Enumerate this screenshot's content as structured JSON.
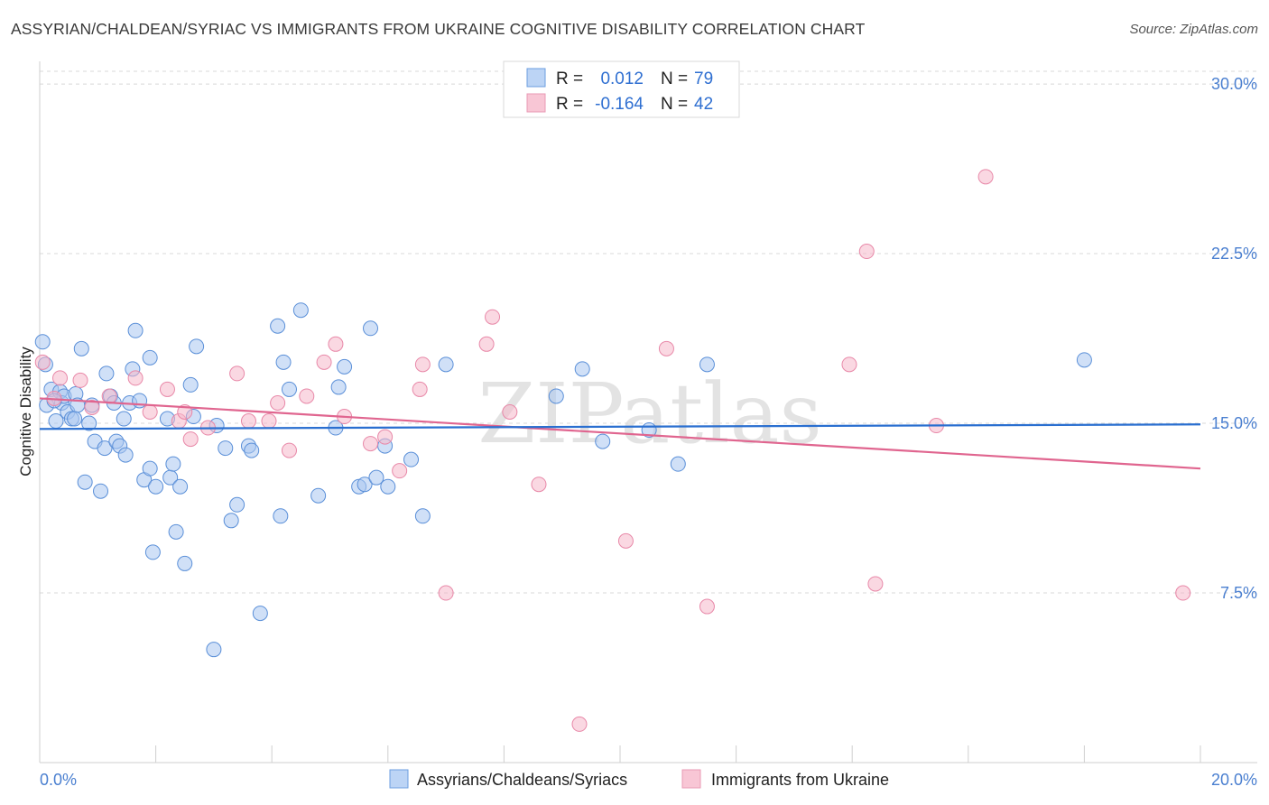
{
  "title": "ASSYRIAN/CHALDEAN/SYRIAC VS IMMIGRANTS FROM UKRAINE COGNITIVE DISABILITY CORRELATION CHART",
  "source": "Source: ZipAtlas.com",
  "watermark": "ZIPatlas",
  "colors": {
    "blue_fill": "#a9c7f1",
    "blue_stroke": "#5a8fd8",
    "blue_line": "#2a6fd0",
    "pink_fill": "#f5b8cb",
    "pink_stroke": "#e888a8",
    "pink_line": "#e0658f",
    "tick_text": "#4a7fd0",
    "grid": "#d8d8d8"
  },
  "legend_top": {
    "rows": [
      {
        "r_label": "R =",
        "r_value": "0.012",
        "n_label": "N =",
        "n_value": "79"
      },
      {
        "r_label": "R =",
        "r_value": "-0.164",
        "n_label": "N =",
        "n_value": "42"
      }
    ]
  },
  "chart_data": {
    "type": "scatter",
    "title": "ASSYRIAN/CHALDEAN/SYRIAC VS IMMIGRANTS FROM UKRAINE COGNITIVE DISABILITY CORRELATION CHART",
    "xlabel": "",
    "ylabel": "Cognitive Disability",
    "xlim": [
      0,
      20
    ],
    "ylim": [
      0,
      31
    ],
    "x_tick_labels": [
      "0.0%",
      "20.0%"
    ],
    "y_ticks": [
      7.5,
      15.0,
      22.5,
      30.0
    ],
    "y_tick_labels": [
      "7.5%",
      "15.0%",
      "22.5%",
      "30.0%"
    ],
    "grid": true,
    "legend_position": "top-center",
    "series": [
      {
        "name": "Assyrians/Chaldeans/Syriacs",
        "color": "#a9c7f1",
        "trend": {
          "x": [
            0,
            20
          ],
          "y": [
            14.75,
            14.95
          ]
        },
        "points": [
          {
            "x": 0.05,
            "y": 18.6
          },
          {
            "x": 0.1,
            "y": 17.6
          },
          {
            "x": 0.12,
            "y": 15.8
          },
          {
            "x": 0.2,
            "y": 16.5
          },
          {
            "x": 0.28,
            "y": 15.1
          },
          {
            "x": 0.35,
            "y": 16.4
          },
          {
            "x": 0.38,
            "y": 15.9
          },
          {
            "x": 0.42,
            "y": 16.2
          },
          {
            "x": 0.48,
            "y": 15.5
          },
          {
            "x": 0.55,
            "y": 15.2
          },
          {
            "x": 0.62,
            "y": 16.3
          },
          {
            "x": 0.65,
            "y": 15.8
          },
          {
            "x": 0.72,
            "y": 18.3
          },
          {
            "x": 0.78,
            "y": 12.4
          },
          {
            "x": 0.85,
            "y": 15.0
          },
          {
            "x": 0.9,
            "y": 15.8
          },
          {
            "x": 0.95,
            "y": 14.2
          },
          {
            "x": 1.05,
            "y": 12.0
          },
          {
            "x": 1.12,
            "y": 13.9
          },
          {
            "x": 1.15,
            "y": 17.2
          },
          {
            "x": 1.22,
            "y": 16.2
          },
          {
            "x": 1.28,
            "y": 15.9
          },
          {
            "x": 1.32,
            "y": 14.2
          },
          {
            "x": 1.38,
            "y": 14.0
          },
          {
            "x": 1.45,
            "y": 15.2
          },
          {
            "x": 1.48,
            "y": 13.6
          },
          {
            "x": 1.55,
            "y": 15.9
          },
          {
            "x": 1.6,
            "y": 17.4
          },
          {
            "x": 1.65,
            "y": 19.1
          },
          {
            "x": 1.72,
            "y": 16.0
          },
          {
            "x": 1.8,
            "y": 12.5
          },
          {
            "x": 1.9,
            "y": 13.0
          },
          {
            "x": 2.0,
            "y": 12.2
          },
          {
            "x": 1.95,
            "y": 9.3
          },
          {
            "x": 2.2,
            "y": 15.2
          },
          {
            "x": 2.25,
            "y": 12.6
          },
          {
            "x": 2.3,
            "y": 13.2
          },
          {
            "x": 2.35,
            "y": 10.2
          },
          {
            "x": 2.42,
            "y": 12.2
          },
          {
            "x": 2.5,
            "y": 8.8
          },
          {
            "x": 2.6,
            "y": 16.7
          },
          {
            "x": 2.65,
            "y": 15.3
          },
          {
            "x": 2.7,
            "y": 18.4
          },
          {
            "x": 1.9,
            "y": 17.9
          },
          {
            "x": 3.0,
            "y": 5.0
          },
          {
            "x": 3.05,
            "y": 14.9
          },
          {
            "x": 3.2,
            "y": 13.9
          },
          {
            "x": 3.3,
            "y": 10.7
          },
          {
            "x": 3.4,
            "y": 11.4
          },
          {
            "x": 3.6,
            "y": 14.0
          },
          {
            "x": 3.65,
            "y": 13.8
          },
          {
            "x": 3.8,
            "y": 6.6
          },
          {
            "x": 4.1,
            "y": 19.3
          },
          {
            "x": 4.15,
            "y": 10.9
          },
          {
            "x": 4.2,
            "y": 17.7
          },
          {
            "x": 4.3,
            "y": 16.5
          },
          {
            "x": 4.5,
            "y": 20.0
          },
          {
            "x": 4.8,
            "y": 11.8
          },
          {
            "x": 5.1,
            "y": 14.8
          },
          {
            "x": 5.15,
            "y": 16.6
          },
          {
            "x": 5.25,
            "y": 17.5
          },
          {
            "x": 5.5,
            "y": 12.2
          },
          {
            "x": 5.6,
            "y": 12.3
          },
          {
            "x": 5.7,
            "y": 19.2
          },
          {
            "x": 5.8,
            "y": 12.6
          },
          {
            "x": 5.95,
            "y": 14.0
          },
          {
            "x": 6.0,
            "y": 12.2
          },
          {
            "x": 6.4,
            "y": 13.4
          },
          {
            "x": 6.6,
            "y": 10.9
          },
          {
            "x": 7.0,
            "y": 17.6
          },
          {
            "x": 8.9,
            "y": 16.2
          },
          {
            "x": 9.35,
            "y": 17.4
          },
          {
            "x": 9.7,
            "y": 14.2
          },
          {
            "x": 10.5,
            "y": 14.7
          },
          {
            "x": 11.0,
            "y": 13.2
          },
          {
            "x": 11.5,
            "y": 17.6
          },
          {
            "x": 18.0,
            "y": 17.8
          },
          {
            "x": 0.6,
            "y": 15.2
          },
          {
            "x": 0.25,
            "y": 16.0
          }
        ]
      },
      {
        "name": "Immigrants from Ukraine",
        "color": "#f5b8cb",
        "trend": {
          "x": [
            0,
            20
          ],
          "y": [
            16.1,
            13.0
          ]
        },
        "points": [
          {
            "x": 0.05,
            "y": 17.7
          },
          {
            "x": 0.35,
            "y": 17.0
          },
          {
            "x": 0.7,
            "y": 16.9
          },
          {
            "x": 0.9,
            "y": 15.7
          },
          {
            "x": 1.2,
            "y": 16.2
          },
          {
            "x": 1.65,
            "y": 17.0
          },
          {
            "x": 1.9,
            "y": 15.5
          },
          {
            "x": 2.2,
            "y": 16.5
          },
          {
            "x": 2.4,
            "y": 15.1
          },
          {
            "x": 2.6,
            "y": 14.3
          },
          {
            "x": 2.9,
            "y": 14.8
          },
          {
            "x": 3.4,
            "y": 17.2
          },
          {
            "x": 3.6,
            "y": 15.1
          },
          {
            "x": 3.95,
            "y": 15.1
          },
          {
            "x": 4.1,
            "y": 15.9
          },
          {
            "x": 4.3,
            "y": 13.8
          },
          {
            "x": 4.6,
            "y": 16.2
          },
          {
            "x": 4.9,
            "y": 17.7
          },
          {
            "x": 5.1,
            "y": 18.5
          },
          {
            "x": 5.25,
            "y": 15.3
          },
          {
            "x": 5.7,
            "y": 14.1
          },
          {
            "x": 5.95,
            "y": 14.4
          },
          {
            "x": 6.2,
            "y": 12.9
          },
          {
            "x": 6.55,
            "y": 16.5
          },
          {
            "x": 6.6,
            "y": 17.6
          },
          {
            "x": 7.0,
            "y": 7.5
          },
          {
            "x": 7.7,
            "y": 18.5
          },
          {
            "x": 7.8,
            "y": 19.7
          },
          {
            "x": 8.1,
            "y": 15.5
          },
          {
            "x": 8.6,
            "y": 12.3
          },
          {
            "x": 9.3,
            "y": 1.7
          },
          {
            "x": 10.1,
            "y": 9.8
          },
          {
            "x": 10.8,
            "y": 18.3
          },
          {
            "x": 11.5,
            "y": 6.9
          },
          {
            "x": 13.95,
            "y": 17.6
          },
          {
            "x": 14.25,
            "y": 22.6
          },
          {
            "x": 14.4,
            "y": 7.9
          },
          {
            "x": 15.45,
            "y": 14.9
          },
          {
            "x": 16.3,
            "y": 25.9
          },
          {
            "x": 19.7,
            "y": 7.5
          },
          {
            "x": 2.5,
            "y": 15.5
          },
          {
            "x": 0.25,
            "y": 16.1
          }
        ]
      }
    ]
  },
  "bottom_legend": {
    "items": [
      "Assyrians/Chaldeans/Syriacs",
      "Immigrants from Ukraine"
    ]
  }
}
